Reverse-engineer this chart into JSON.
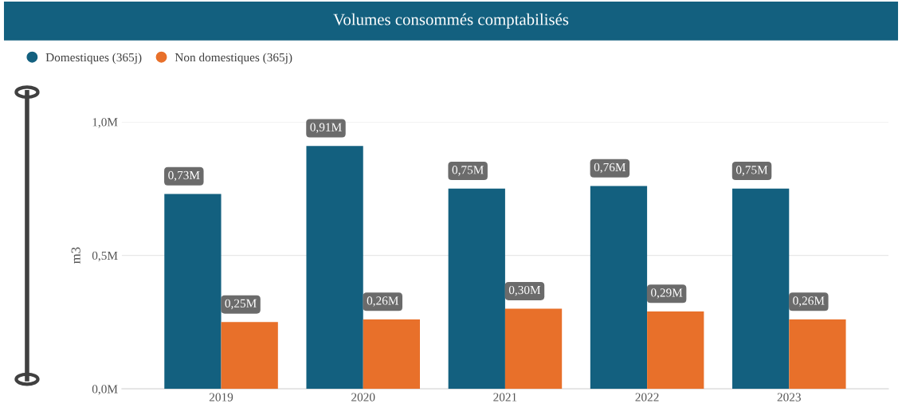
{
  "chart_data": {
    "type": "bar",
    "title": "Volumes consommés comptabilisés",
    "ylabel": "m3",
    "categories": [
      "2019",
      "2020",
      "2021",
      "2022",
      "2023"
    ],
    "series": [
      {
        "name": "Domestiques (365j)",
        "color": "#13607f",
        "values": [
          0.73,
          0.91,
          0.75,
          0.76,
          0.75
        ],
        "value_labels": [
          "0,73M",
          "0,91M",
          "0,75M",
          "0,76M",
          "0,75M"
        ]
      },
      {
        "name": "Non domestiques (365j)",
        "color": "#e8702a",
        "values": [
          0.25,
          0.26,
          0.3,
          0.29,
          0.26
        ],
        "value_labels": [
          "0,25M",
          "0,26M",
          "0,30M",
          "0,29M",
          "0,26M"
        ]
      }
    ],
    "ylim": [
      0,
      1.0
    ],
    "yticks": [
      {
        "value": 0,
        "label": "0,0M"
      },
      {
        "value": 0.5,
        "label": "0,5M"
      },
      {
        "value": 1.0,
        "label": "1,0M"
      }
    ],
    "grid": "y",
    "legend": "top left"
  }
}
